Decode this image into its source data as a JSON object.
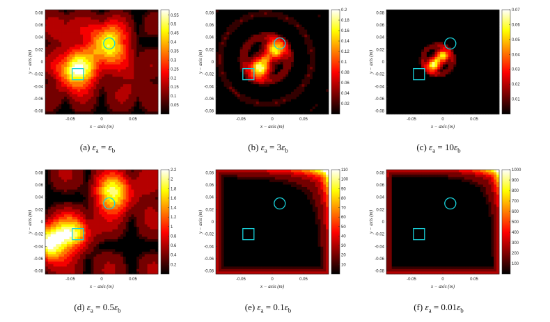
{
  "figure": {
    "panels": [
      {
        "id": "a",
        "caption_prefix": "(a)",
        "caption_rhs_coef": "",
        "caption_sub_a": "a",
        "caption_sub_b": "b",
        "eps_symbol": "ε",
        "colorbar_ticks": [
          "0.55",
          "0.5",
          "0.45",
          "0.4",
          "0.35",
          "0.3",
          "0.25",
          "0.2",
          "0.15",
          "0.1",
          "0.05"
        ]
      },
      {
        "id": "b",
        "caption_prefix": "(b)",
        "caption_rhs_coef": "3",
        "caption_sub_a": "a",
        "caption_sub_b": "b",
        "eps_symbol": "ε",
        "colorbar_ticks": [
          "0.2",
          "0.18",
          "0.16",
          "0.14",
          "0.12",
          "0.1",
          "0.08",
          "0.06",
          "0.04",
          "0.02"
        ]
      },
      {
        "id": "c",
        "caption_prefix": "(c)",
        "caption_rhs_coef": "10",
        "caption_sub_a": "a",
        "caption_sub_b": "b",
        "eps_symbol": "ε",
        "colorbar_ticks": [
          "0.07",
          "0.06",
          "0.05",
          "0.04",
          "0.03",
          "0.02",
          "0.01"
        ]
      },
      {
        "id": "d",
        "caption_prefix": "(d)",
        "caption_rhs_coef": "0.5",
        "caption_sub_a": "a",
        "caption_sub_b": "b",
        "eps_symbol": "ε",
        "colorbar_ticks": [
          "2.2",
          "2",
          "1.8",
          "1.6",
          "1.4",
          "1.2",
          "1",
          "0.8",
          "0.6",
          "0.4",
          "0.2"
        ]
      },
      {
        "id": "e",
        "caption_prefix": "(e)",
        "caption_rhs_coef": "0.1",
        "caption_sub_a": "a",
        "caption_sub_b": "b",
        "eps_symbol": "ε",
        "colorbar_ticks": [
          "110",
          "100",
          "90",
          "80",
          "70",
          "60",
          "50",
          "40",
          "30",
          "20",
          "10"
        ]
      },
      {
        "id": "f",
        "caption_prefix": "(f)",
        "caption_rhs_coef": "0.01",
        "caption_sub_a": "a",
        "caption_sub_b": "b",
        "eps_symbol": "ε",
        "colorbar_ticks": [
          "1000",
          "900",
          "800",
          "700",
          "600",
          "500",
          "400",
          "300",
          "200",
          "100"
        ]
      }
    ]
  },
  "chart_data": [
    {
      "type": "heatmap",
      "panel": "a",
      "xlabel": "x − axis (m)",
      "ylabel": "y − axis (m)",
      "xlim": [
        -0.09,
        0.09
      ],
      "ylim": [
        -0.085,
        0.085
      ],
      "xticks": [
        "-0.05",
        "0",
        "0.05"
      ],
      "yticks": [
        "0.08",
        "0.06",
        "0.04",
        "0.02",
        "0",
        "-0.02",
        "-0.04",
        "-0.06",
        "-0.08"
      ],
      "colorbar_range": [
        0,
        0.58
      ],
      "blobs": [
        {
          "x": -0.04,
          "y": -0.015,
          "value": 0.55
        },
        {
          "x": 0.01,
          "y": 0.03,
          "value": 0.5
        }
      ],
      "markers": [
        {
          "shape": "square",
          "x": -0.038,
          "y": -0.02
        },
        {
          "shape": "circle",
          "x": 0.012,
          "y": 0.03
        }
      ]
    },
    {
      "type": "heatmap",
      "panel": "b",
      "xlabel": "x − axis (m)",
      "ylabel": "y − axis (m)",
      "xlim": [
        -0.09,
        0.09
      ],
      "ylim": [
        -0.085,
        0.085
      ],
      "xticks": [
        "-0.05",
        "0",
        "0.05"
      ],
      "yticks": [
        "0.08",
        "0.06",
        "0.04",
        "0.02",
        "0",
        "-0.02",
        "-0.04",
        "-0.06",
        "-0.08"
      ],
      "colorbar_range": [
        0,
        0.2
      ],
      "blobs": [
        {
          "x": -0.02,
          "y": -0.01,
          "value": 0.2
        },
        {
          "x": 0.005,
          "y": 0.02,
          "value": 0.18
        }
      ],
      "markers": [
        {
          "shape": "square",
          "x": -0.038,
          "y": -0.02
        },
        {
          "shape": "circle",
          "x": 0.012,
          "y": 0.03
        }
      ]
    },
    {
      "type": "heatmap",
      "panel": "c",
      "xlabel": "x − axis (m)",
      "ylabel": "y − axis (m)",
      "xlim": [
        -0.09,
        0.09
      ],
      "ylim": [
        -0.085,
        0.085
      ],
      "xticks": [
        "-0.05",
        "0",
        "0.05"
      ],
      "yticks": [
        "0.08",
        "0.06",
        "0.04",
        "0.02",
        "0",
        "-0.02",
        "-0.04",
        "-0.06",
        "-0.08"
      ],
      "colorbar_range": [
        0,
        0.07
      ],
      "blobs": [
        {
          "x": -0.015,
          "y": -0.005,
          "value": 0.07
        },
        {
          "x": 0.0,
          "y": 0.01,
          "value": 0.06
        }
      ],
      "markers": [
        {
          "shape": "square",
          "x": -0.038,
          "y": -0.02
        },
        {
          "shape": "circle",
          "x": 0.012,
          "y": 0.03
        }
      ]
    },
    {
      "type": "heatmap",
      "panel": "d",
      "xlabel": "x − axis (m)",
      "ylabel": "y − axis (m)",
      "xlim": [
        -0.09,
        0.09
      ],
      "ylim": [
        -0.085,
        0.085
      ],
      "xticks": [
        "-0.05",
        "0",
        "0.05"
      ],
      "yticks": [
        "0.08",
        "0.06",
        "0.04",
        "0.02",
        "0",
        "-0.02",
        "-0.04",
        "-0.06",
        "-0.08"
      ],
      "colorbar_range": [
        0,
        2.2
      ],
      "blobs": [
        {
          "x": -0.085,
          "y": -0.035,
          "value": 2.2
        },
        {
          "x": 0.018,
          "y": 0.045,
          "value": 1.9
        },
        {
          "x": -0.045,
          "y": -0.02,
          "value": 1.6
        }
      ],
      "markers": [
        {
          "shape": "square",
          "x": -0.038,
          "y": -0.02
        },
        {
          "shape": "circle",
          "x": 0.012,
          "y": 0.03
        }
      ]
    },
    {
      "type": "heatmap",
      "panel": "e",
      "xlabel": "x − axis (m)",
      "ylabel": "y − axis (m)",
      "xlim": [
        -0.09,
        0.09
      ],
      "ylim": [
        -0.085,
        0.085
      ],
      "xticks": [
        "-0.05",
        "0",
        "0.05"
      ],
      "yticks": [
        "0.08",
        "0.06",
        "0.04",
        "0.02",
        "0",
        "-0.02",
        "-0.04",
        "-0.06",
        "-0.08"
      ],
      "colorbar_range": [
        0,
        110
      ],
      "blobs": [
        {
          "x": 0.09,
          "y": 0.085,
          "value": 110
        }
      ],
      "markers": [
        {
          "shape": "square",
          "x": -0.038,
          "y": -0.02
        },
        {
          "shape": "circle",
          "x": 0.012,
          "y": 0.03
        }
      ]
    },
    {
      "type": "heatmap",
      "panel": "f",
      "xlabel": "x − axis (m)",
      "ylabel": "y − axis (m)",
      "xlim": [
        -0.09,
        0.09
      ],
      "ylim": [
        -0.085,
        0.085
      ],
      "xticks": [
        "-0.05",
        "0",
        "0.05"
      ],
      "yticks": [
        "0.08",
        "0.06",
        "0.04",
        "0.02",
        "0",
        "-0.02",
        "-0.04",
        "-0.06",
        "-0.08"
      ],
      "colorbar_range": [
        0,
        1000
      ],
      "blobs": [
        {
          "x": 0.09,
          "y": 0.085,
          "value": 1000
        }
      ],
      "markers": [
        {
          "shape": "square",
          "x": -0.038,
          "y": -0.02
        },
        {
          "shape": "circle",
          "x": 0.012,
          "y": 0.03
        }
      ]
    }
  ]
}
